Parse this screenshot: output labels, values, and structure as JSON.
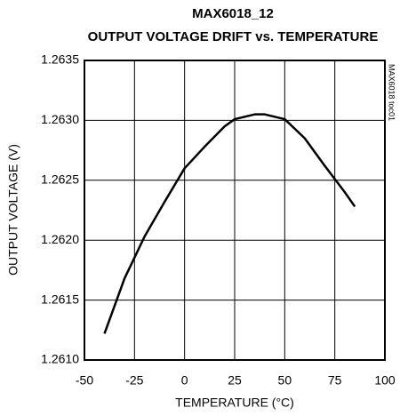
{
  "chart_data": {
    "type": "line",
    "title": "MAX6018_12",
    "subtitle": "OUTPUT VOLTAGE DRIFT vs. TEMPERATURE",
    "x_label": "TEMPERATURE (°C)",
    "y_label": "OUTPUT VOLTAGE (V)",
    "annotation": "MAX6018 toc01",
    "x": [
      -40,
      -30,
      -20,
      -10,
      0,
      10,
      20,
      25,
      35,
      40,
      50,
      60,
      70,
      80,
      85
    ],
    "series": [
      {
        "name": "Output voltage",
        "color": "#000000",
        "values": [
          1.26122,
          1.26168,
          1.26203,
          1.26232,
          1.2626,
          1.26278,
          1.26295,
          1.26301,
          1.26305,
          1.26305,
          1.26301,
          1.26285,
          1.26262,
          1.2624,
          1.26228
        ]
      }
    ],
    "xlim": [
      -50,
      100
    ],
    "xticks": [
      -50,
      -25,
      0,
      25,
      50,
      75,
      100
    ],
    "ylim": [
      1.261,
      1.2635
    ],
    "yticks": [
      {
        "value": 1.261,
        "label": "1.2610"
      },
      1.2615,
      {
        "value": 1.262,
        "label": "1.2620"
      },
      1.2625,
      {
        "value": 1.263,
        "label": "1.2630"
      },
      1.2635
    ],
    "grid": true
  }
}
